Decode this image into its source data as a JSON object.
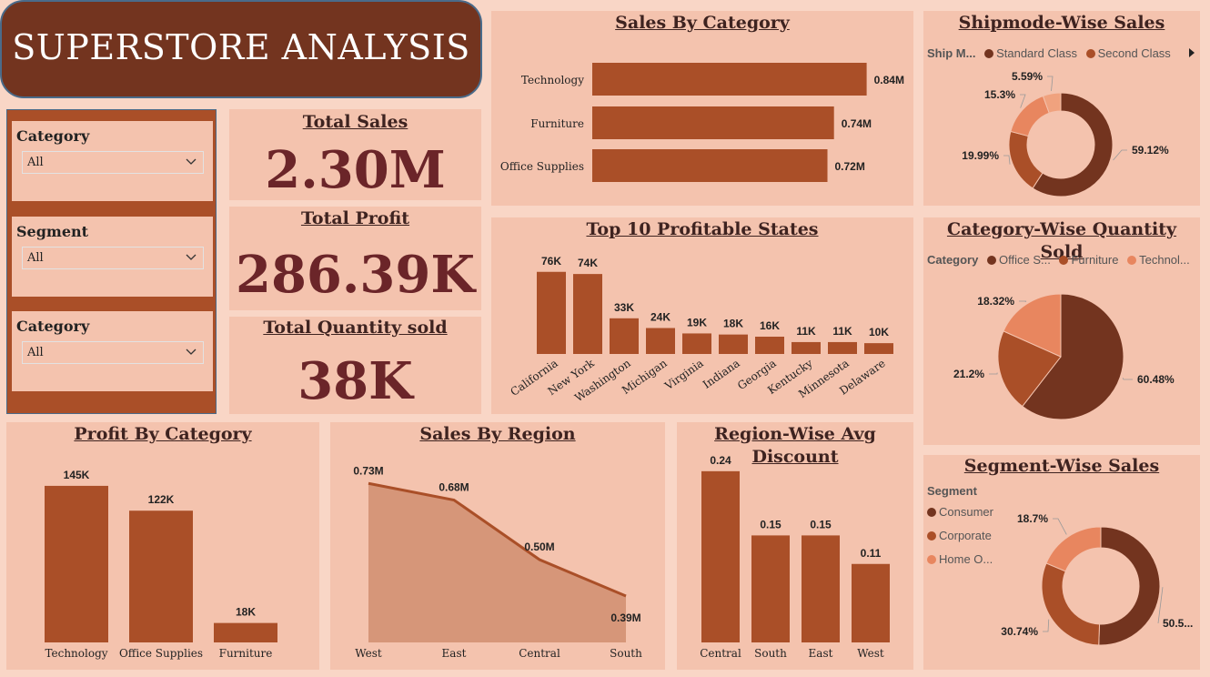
{
  "title": "SUPERSTORE ANALYSIS",
  "slicers": [
    {
      "label": "Category",
      "value": "All"
    },
    {
      "label": "Segment",
      "value": "All"
    },
    {
      "label": "Category",
      "value": "All"
    }
  ],
  "kpis": {
    "total_sales": {
      "label": "Total Sales",
      "value": "2.30M"
    },
    "total_profit": {
      "label": "Total Profit",
      "value": "286.39K"
    },
    "total_quantity": {
      "label": "Total Quantity sold",
      "value": "38K"
    }
  },
  "colors": {
    "dark": "#73341f",
    "mid": "#aa4f28",
    "light": "#e8865f",
    "lighter": "#f0a27e",
    "area": "#d69679"
  },
  "chart_data": [
    {
      "id": "sales_by_category",
      "type": "bar",
      "orientation": "horizontal",
      "title": "Sales By Category",
      "categories": [
        "Technology",
        "Furniture",
        "Office Supplies"
      ],
      "values": [
        0.84,
        0.74,
        0.72
      ],
      "labels": [
        "0.84M",
        "0.74M",
        "0.72M"
      ],
      "xlim": [
        0,
        0.9
      ]
    },
    {
      "id": "shipmode_sales",
      "type": "pie",
      "donut": true,
      "title": "Shipmode-Wise Sales",
      "legend_title": "Ship M...",
      "legend": [
        "Standard Class",
        "Second Class"
      ],
      "values": [
        59.12,
        19.99,
        15.3,
        5.59
      ],
      "labels": [
        "59.12%",
        "19.99%",
        "15.3%",
        "5.59%"
      ]
    },
    {
      "id": "top10_states",
      "type": "bar",
      "title": "Top 10 Profitable States",
      "categories": [
        "California",
        "New York",
        "Washington",
        "Michigan",
        "Virginia",
        "Indiana",
        "Georgia",
        "Kentucky",
        "Minnesota",
        "Delaware"
      ],
      "values": [
        76,
        74,
        33,
        24,
        19,
        18,
        16,
        11,
        11,
        10
      ],
      "labels": [
        "76K",
        "74K",
        "33K",
        "24K",
        "19K",
        "18K",
        "16K",
        "11K",
        "11K",
        "10K"
      ],
      "ylim": [
        0,
        80
      ]
    },
    {
      "id": "category_quantity",
      "type": "pie",
      "title": "Category-Wise Quantity Sold",
      "legend_title": "Category",
      "legend": [
        "Office S...",
        "Furniture",
        "Technol..."
      ],
      "values": [
        60.48,
        21.2,
        18.32
      ],
      "labels": [
        "60.48%",
        "21.2%",
        "18.32%"
      ]
    },
    {
      "id": "profit_by_category",
      "type": "bar",
      "title": "Profit By Category",
      "categories": [
        "Technology",
        "Office Supplies",
        "Furniture"
      ],
      "values": [
        145,
        122,
        18
      ],
      "labels": [
        "145K",
        "122K",
        "18K"
      ],
      "ylim": [
        0,
        150
      ]
    },
    {
      "id": "sales_by_region",
      "type": "area",
      "title": "Sales By Region",
      "categories": [
        "West",
        "East",
        "Central",
        "South"
      ],
      "values": [
        0.73,
        0.68,
        0.5,
        0.39
      ],
      "labels": [
        "0.73M",
        "0.68M",
        "0.50M",
        "0.39M"
      ],
      "ylim": [
        0.25,
        0.75
      ]
    },
    {
      "id": "region_discount",
      "type": "bar",
      "title_line1": "Region-Wise Avg",
      "title_line2": "Discount",
      "categories": [
        "Central",
        "South",
        "East",
        "West"
      ],
      "values": [
        0.24,
        0.15,
        0.15,
        0.11
      ],
      "labels": [
        "0.24",
        "0.15",
        "0.15",
        "0.11"
      ],
      "ylim": [
        0,
        0.25
      ]
    },
    {
      "id": "segment_sales",
      "type": "pie",
      "donut": true,
      "title": "Segment-Wise Sales",
      "legend_title": "Segment",
      "legend": [
        "Consumer",
        "Corporate",
        "Home O..."
      ],
      "values": [
        50.56,
        30.74,
        18.7
      ],
      "labels": [
        "50.5...",
        "30.74%",
        "18.7%"
      ]
    }
  ]
}
